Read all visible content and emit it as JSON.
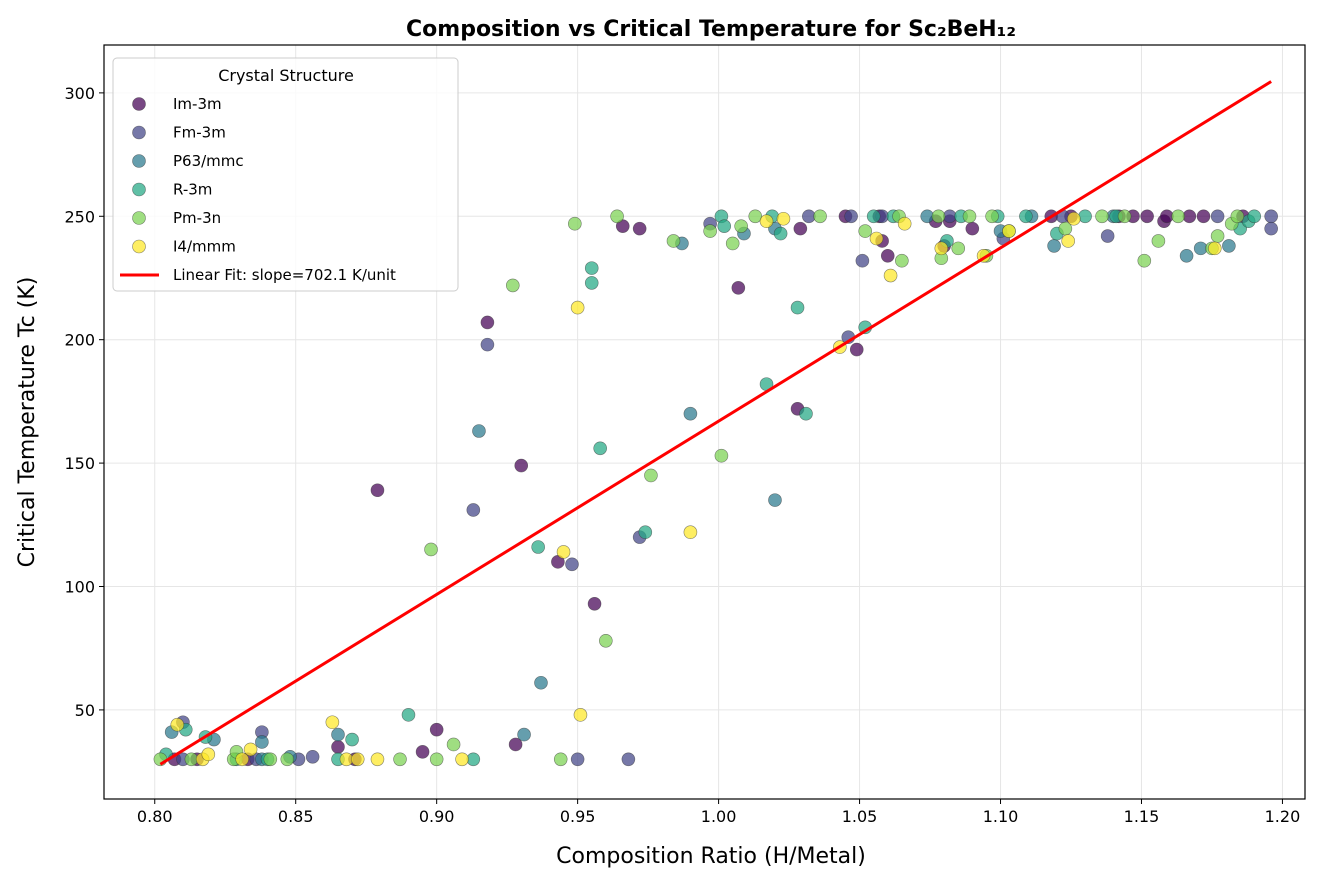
{
  "chart_data": {
    "type": "scatter",
    "title": "Composition vs Critical Temperature for Sc₂BeH₁₂",
    "xlabel": "Composition Ratio (H/Metal)",
    "ylabel": "Critical Temperature Tc (K)",
    "xlim": [
      0.782,
      1.208
    ],
    "ylim": [
      13.9,
      319.4
    ],
    "xticks": [
      "0.80",
      "0.85",
      "0.90",
      "0.95",
      "1.00",
      "1.05",
      "1.10",
      "1.15",
      "1.20"
    ],
    "yticks": [
      "50",
      "100",
      "150",
      "200",
      "250",
      "300"
    ],
    "grid": true,
    "legend": {
      "title": "Crystal Structure",
      "placement": "top-left"
    },
    "series": [
      {
        "name": "Im-3m",
        "color": "#440154",
        "points": [
          [
            0.807,
            30
          ],
          [
            0.815,
            30
          ],
          [
            0.833,
            30
          ],
          [
            0.871,
            30
          ],
          [
            0.865,
            35
          ],
          [
            0.895,
            33
          ],
          [
            0.9,
            42
          ],
          [
            0.928,
            36
          ],
          [
            0.956,
            93
          ],
          [
            0.879,
            139
          ],
          [
            0.918,
            207
          ],
          [
            0.93,
            149
          ],
          [
            0.943,
            110
          ],
          [
            0.966,
            246
          ],
          [
            0.972,
            245
          ],
          [
            1.007,
            221
          ],
          [
            1.028,
            172
          ],
          [
            1.029,
            245
          ],
          [
            1.045,
            250
          ],
          [
            1.049,
            196
          ],
          [
            1.057,
            250
          ],
          [
            1.058,
            240
          ],
          [
            1.06,
            234
          ],
          [
            1.077,
            248
          ],
          [
            1.08,
            238
          ],
          [
            1.082,
            248
          ],
          [
            1.09,
            245
          ],
          [
            1.118,
            250
          ],
          [
            1.125,
            250
          ],
          [
            1.142,
            250
          ],
          [
            1.147,
            250
          ],
          [
            1.152,
            250
          ],
          [
            1.158,
            248
          ],
          [
            1.159,
            250
          ],
          [
            1.167,
            250
          ],
          [
            1.172,
            250
          ],
          [
            1.186,
            250
          ]
        ]
      },
      {
        "name": "Fm-3m",
        "color": "#414487",
        "points": [
          [
            0.81,
            30
          ],
          [
            0.836,
            30
          ],
          [
            0.851,
            30
          ],
          [
            0.95,
            30
          ],
          [
            0.968,
            30
          ],
          [
            0.81,
            45
          ],
          [
            0.838,
            41
          ],
          [
            0.856,
            31
          ],
          [
            0.913,
            131
          ],
          [
            0.918,
            198
          ],
          [
            0.948,
            109
          ],
          [
            0.972,
            120
          ],
          [
            0.997,
            247
          ],
          [
            1.032,
            250
          ],
          [
            1.046,
            201
          ],
          [
            1.047,
            250
          ],
          [
            1.051,
            232
          ],
          [
            1.058,
            250
          ],
          [
            1.082,
            250
          ],
          [
            1.101,
            241
          ],
          [
            1.122,
            250
          ],
          [
            1.138,
            242
          ],
          [
            1.177,
            250
          ],
          [
            1.196,
            250
          ],
          [
            1.196,
            245
          ]
        ]
      },
      {
        "name": "P63/mmc",
        "color": "#2a788e",
        "points": [
          [
            0.838,
            30
          ],
          [
            0.806,
            41
          ],
          [
            0.821,
            38
          ],
          [
            0.838,
            37
          ],
          [
            0.848,
            31
          ],
          [
            0.865,
            40
          ],
          [
            0.931,
            40
          ],
          [
            0.937,
            61
          ],
          [
            0.915,
            163
          ],
          [
            0.987,
            239
          ],
          [
            0.99,
            170
          ],
          [
            1.009,
            243
          ],
          [
            1.02,
            135
          ],
          [
            1.02,
            245
          ],
          [
            1.074,
            250
          ],
          [
            1.1,
            244
          ],
          [
            1.111,
            250
          ],
          [
            1.119,
            238
          ],
          [
            1.14,
            250
          ],
          [
            1.166,
            234
          ],
          [
            1.171,
            237
          ],
          [
            1.181,
            238
          ]
        ]
      },
      {
        "name": "R-3m",
        "color": "#22a884",
        "points": [
          [
            0.829,
            30
          ],
          [
            0.84,
            30
          ],
          [
            0.865,
            30
          ],
          [
            0.913,
            30
          ],
          [
            0.804,
            32
          ],
          [
            0.811,
            42
          ],
          [
            0.818,
            39
          ],
          [
            0.87,
            38
          ],
          [
            0.89,
            48
          ],
          [
            0.936,
            116
          ],
          [
            0.955,
            223
          ],
          [
            0.955,
            229
          ],
          [
            0.958,
            156
          ],
          [
            0.974,
            122
          ],
          [
            1.001,
            250
          ],
          [
            1.002,
            246
          ],
          [
            1.017,
            182
          ],
          [
            1.019,
            250
          ],
          [
            1.022,
            243
          ],
          [
            1.028,
            213
          ],
          [
            1.031,
            170
          ],
          [
            1.052,
            205
          ],
          [
            1.055,
            250
          ],
          [
            1.062,
            250
          ],
          [
            1.081,
            240
          ],
          [
            1.086,
            250
          ],
          [
            1.099,
            250
          ],
          [
            1.109,
            250
          ],
          [
            1.12,
            243
          ],
          [
            1.13,
            250
          ],
          [
            1.141,
            250
          ],
          [
            1.185,
            245
          ],
          [
            1.188,
            248
          ],
          [
            1.19,
            250
          ]
        ]
      },
      {
        "name": "Pm-3n",
        "color": "#7ad151",
        "points": [
          [
            0.802,
            30
          ],
          [
            0.813,
            30
          ],
          [
            0.828,
            30
          ],
          [
            0.841,
            30
          ],
          [
            0.847,
            30
          ],
          [
            0.887,
            30
          ],
          [
            0.9,
            30
          ],
          [
            0.944,
            30
          ],
          [
            0.829,
            33
          ],
          [
            0.906,
            36
          ],
          [
            0.96,
            78
          ],
          [
            0.898,
            115
          ],
          [
            0.927,
            222
          ],
          [
            0.949,
            247
          ],
          [
            0.964,
            250
          ],
          [
            0.976,
            145
          ],
          [
            0.984,
            240
          ],
          [
            0.997,
            244
          ],
          [
            1.001,
            153
          ],
          [
            1.005,
            239
          ],
          [
            1.008,
            246
          ],
          [
            1.013,
            250
          ],
          [
            1.036,
            250
          ],
          [
            1.052,
            244
          ],
          [
            1.064,
            250
          ],
          [
            1.065,
            232
          ],
          [
            1.078,
            250
          ],
          [
            1.079,
            233
          ],
          [
            1.085,
            237
          ],
          [
            1.089,
            250
          ],
          [
            1.095,
            234
          ],
          [
            1.097,
            250
          ],
          [
            1.103,
            244
          ],
          [
            1.123,
            245
          ],
          [
            1.136,
            250
          ],
          [
            1.144,
            250
          ],
          [
            1.151,
            232
          ],
          [
            1.156,
            240
          ],
          [
            1.163,
            250
          ],
          [
            1.175,
            237
          ],
          [
            1.177,
            242
          ],
          [
            1.182,
            247
          ],
          [
            1.184,
            250
          ]
        ]
      },
      {
        "name": "I4/mmm",
        "color": "#fde725",
        "points": [
          [
            0.817,
            30
          ],
          [
            0.831,
            30
          ],
          [
            0.868,
            30
          ],
          [
            0.872,
            30
          ],
          [
            0.879,
            30
          ],
          [
            0.909,
            30
          ],
          [
            0.808,
            44
          ],
          [
            0.819,
            32
          ],
          [
            0.834,
            34
          ],
          [
            0.863,
            45
          ],
          [
            0.951,
            48
          ],
          [
            0.945,
            114
          ],
          [
            0.95,
            213
          ],
          [
            0.99,
            122
          ],
          [
            1.017,
            248
          ],
          [
            1.023,
            249
          ],
          [
            1.043,
            197
          ],
          [
            1.056,
            241
          ],
          [
            1.061,
            226
          ],
          [
            1.066,
            247
          ],
          [
            1.079,
            237
          ],
          [
            1.094,
            234
          ],
          [
            1.103,
            244
          ],
          [
            1.124,
            240
          ],
          [
            1.126,
            249
          ],
          [
            1.176,
            237
          ]
        ]
      }
    ],
    "fit": {
      "name": "Linear Fit: slope=702.1 K/unit",
      "color": "#ff0000",
      "slope": 702.1,
      "intercept": -535.1,
      "x_range": [
        0.802,
        1.196
      ]
    }
  }
}
